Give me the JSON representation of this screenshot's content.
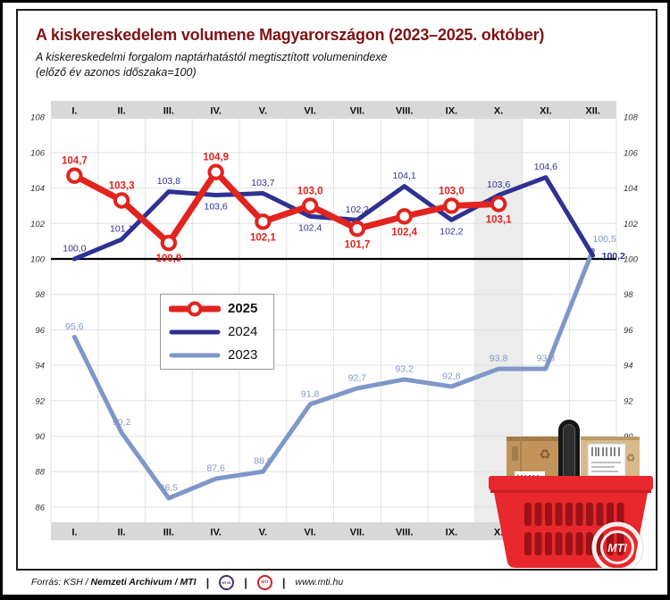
{
  "header": {
    "title": "A kiskereskedelem volumene Magyarországon (2023–2025. október)",
    "subtitle_line1": "A kiskereskedelmi forgalom naptárhatástól megtisztított volumenindexe",
    "subtitle_line2": "(előző év azonos időszaka=100)"
  },
  "chart_data": {
    "type": "line",
    "title": "A kiskereskedelem volumene Magyarországon (2023–2025. október)",
    "xlabel": "",
    "ylabel": "",
    "categories": [
      "I.",
      "II.",
      "III.",
      "IV.",
      "V.",
      "VI.",
      "VII.",
      "VIII.",
      "IX.",
      "X.",
      "XI.",
      "XII."
    ],
    "y_ticks": [
      86,
      88,
      90,
      92,
      94,
      96,
      98,
      100,
      102,
      104,
      106,
      108
    ],
    "ylim": [
      85,
      108
    ],
    "baseline_value": 100,
    "highlighted_category": "X.",
    "grid": true,
    "legend_position": "middle-left",
    "x_axis_labels_position": "top-and-bottom",
    "series": [
      {
        "name": "2025",
        "color": "#e2231e",
        "style": "thick-with-markers",
        "values": [
          104.7,
          103.3,
          100.9,
          104.9,
          102.1,
          103.0,
          101.7,
          102.4,
          103.0,
          103.1,
          null,
          null
        ],
        "labels": [
          "104,7",
          "103,3",
          "100,9",
          "104,9",
          "102,1",
          "103,0",
          "101,7",
          "102,4",
          "103,0",
          "103,1",
          "",
          ""
        ],
        "label_positions": [
          "above",
          "above",
          "below",
          "above",
          "below",
          "above",
          "below",
          "below",
          "above",
          "below",
          "",
          ""
        ]
      },
      {
        "name": "2024",
        "color": "#2e3192",
        "style": "plain",
        "values": [
          100.0,
          101.1,
          103.8,
          103.6,
          103.7,
          102.4,
          102.2,
          104.1,
          102.2,
          103.6,
          104.6,
          100.2
        ],
        "labels": [
          "100,0",
          "101,1",
          "103,8",
          "103,6",
          "103,7",
          "102,4",
          "102,2",
          "104,1",
          "102,2",
          "103,6",
          "104,6",
          "100,2"
        ],
        "label_positions": [
          "above",
          "above",
          "above",
          "below",
          "above",
          "below",
          "above",
          "above",
          "below",
          "above",
          "above",
          "right"
        ],
        "bold_labels": [
          11
        ]
      },
      {
        "name": "2023",
        "color": "#7e97c8",
        "style": "plain",
        "values": [
          95.6,
          90.2,
          86.5,
          87.6,
          88.0,
          91.8,
          92.7,
          93.2,
          92.8,
          93.8,
          93.8,
          100.5
        ],
        "labels": [
          "95,6",
          "90,2",
          "86,5",
          "87,6",
          "88,0",
          "91,8",
          "92,7",
          "93,2",
          "92,8",
          "93,8",
          "93,8",
          "100,5"
        ],
        "label_positions": [
          "above",
          "above",
          "above",
          "above",
          "above",
          "above",
          "above",
          "above",
          "above",
          "above",
          "above",
          "above-right"
        ]
      }
    ]
  },
  "colors": {
    "title": "#7e1315",
    "band": "#d8d8d8",
    "highlight": "#ececec",
    "grid": "#e0e0e0",
    "baseline": "#000000",
    "basket_red": "#e8282c",
    "basket_slot": "#9c1216"
  },
  "watermark": {
    "text": "MTI"
  },
  "footer": {
    "source_prefix": "Forrás: KSH / ",
    "source_archive": "Nemzeti Archivum",
    "source_sep": " / ",
    "source_agency": "MTI",
    "separator": "|",
    "mtva_logo": "MTVA",
    "mti_logo": "MTI",
    "website": "www.mti.hu"
  }
}
